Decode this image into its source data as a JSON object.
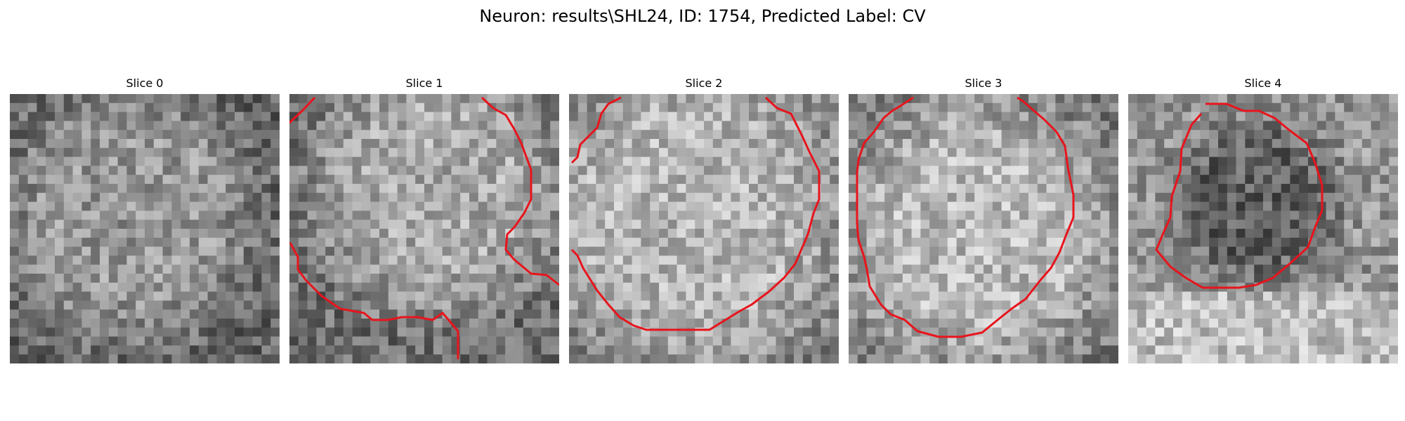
{
  "figure": {
    "title": "Neuron: results\\SHL24, ID: 1754, Predicted Label: CV"
  },
  "panels": [
    {
      "title": "Slice 0",
      "has_contour": false
    },
    {
      "title": "Slice 1",
      "has_contour": true
    },
    {
      "title": "Slice 2",
      "has_contour": true
    },
    {
      "title": "Slice 3",
      "has_contour": true
    },
    {
      "title": "Slice 4",
      "has_contour": true
    }
  ],
  "colors": {
    "contour": "#e8141c",
    "background": "#ffffff"
  }
}
